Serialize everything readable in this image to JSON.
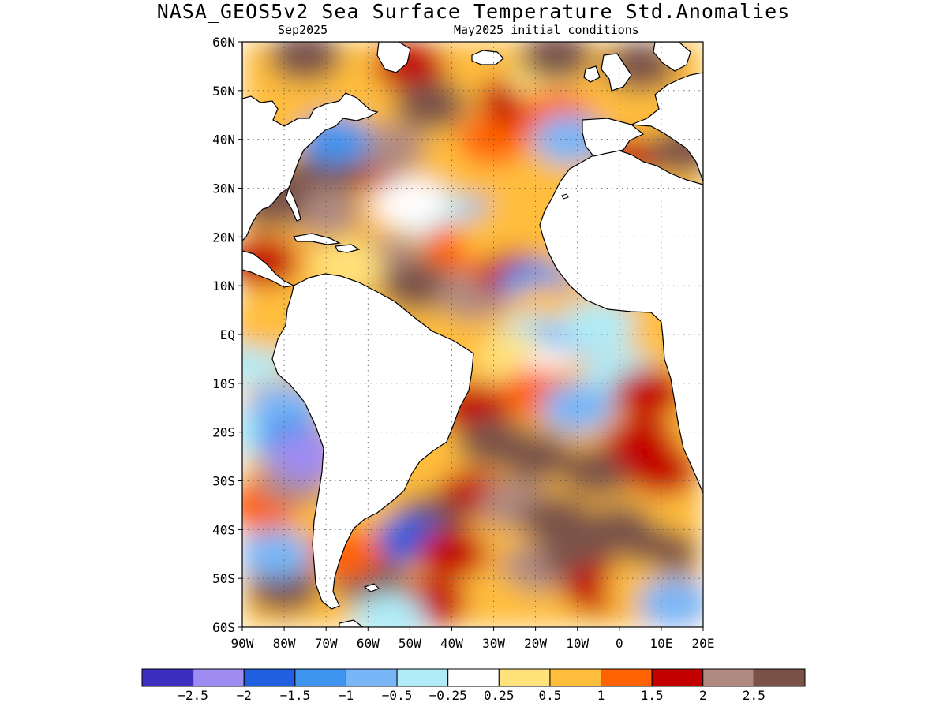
{
  "title": "NASA_GEOS5v2 Sea Surface Temperature Std.Anomalies",
  "subtitle_left": "Sep2025",
  "subtitle_right": "May2025 initial conditions",
  "map": {
    "lon_range": [
      -90,
      20
    ],
    "lat_range": [
      -60,
      60
    ],
    "lat_ticks": [
      {
        "value": 60,
        "label": "60N"
      },
      {
        "value": 50,
        "label": "50N"
      },
      {
        "value": 40,
        "label": "40N"
      },
      {
        "value": 30,
        "label": "30N"
      },
      {
        "value": 20,
        "label": "20N"
      },
      {
        "value": 10,
        "label": "10N"
      },
      {
        "value": 0,
        "label": "EQ"
      },
      {
        "value": -10,
        "label": "10S"
      },
      {
        "value": -20,
        "label": "20S"
      },
      {
        "value": -30,
        "label": "30S"
      },
      {
        "value": -40,
        "label": "40S"
      },
      {
        "value": -50,
        "label": "50S"
      },
      {
        "value": -60,
        "label": "60S"
      }
    ],
    "lon_ticks": [
      {
        "value": -90,
        "label": "90W"
      },
      {
        "value": -80,
        "label": "80W"
      },
      {
        "value": -70,
        "label": "70W"
      },
      {
        "value": -60,
        "label": "60W"
      },
      {
        "value": -50,
        "label": "50W"
      },
      {
        "value": -40,
        "label": "40W"
      },
      {
        "value": -30,
        "label": "30W"
      },
      {
        "value": -20,
        "label": "20W"
      },
      {
        "value": -10,
        "label": "10W"
      },
      {
        "value": 0,
        "label": "0"
      },
      {
        "value": 10,
        "label": "10E"
      },
      {
        "value": 20,
        "label": "20E"
      }
    ],
    "gridlines": "dotted"
  },
  "colorbar": {
    "colors": [
      "#3c2fbf",
      "#9e8cf2",
      "#1f5fe0",
      "#3f94f0",
      "#78b6f7",
      "#b0ecf7",
      "#ffffff",
      "#ffe27a",
      "#ffbd3c",
      "#ff6200",
      "#c30000",
      "#b08a80",
      "#7a5248"
    ],
    "labels": [
      "-2.5",
      "-2",
      "-1.5",
      "-1",
      "-0.5",
      "-0.25",
      "0.25",
      "0.5",
      "1",
      "1.5",
      "2",
      "2.5"
    ]
  },
  "anomaly_features": [
    {
      "lon": -40,
      "lat": 27,
      "value": -1.0
    },
    {
      "lon": -45,
      "lat": 25,
      "value": -0.5
    },
    {
      "lon": -50,
      "lat": 27,
      "value": -0.25
    },
    {
      "lon": -35,
      "lat": 33,
      "value": 0.5
    },
    {
      "lon": -60,
      "lat": 35,
      "value": 1.5
    },
    {
      "lon": -55,
      "lat": 38,
      "value": 2.0
    },
    {
      "lon": -70,
      "lat": 33,
      "value": 2.5
    },
    {
      "lon": -80,
      "lat": 30,
      "value": 2.5
    },
    {
      "lon": -30,
      "lat": 40,
      "value": 1.0
    },
    {
      "lon": -25,
      "lat": 48,
      "value": 1.5
    },
    {
      "lon": -18,
      "lat": 53,
      "value": 0.25
    },
    {
      "lon": -15,
      "lat": 45,
      "value": 1.0
    },
    {
      "lon": -50,
      "lat": 55,
      "value": 1.5
    },
    {
      "lon": -75,
      "lat": 57,
      "value": 2.5
    },
    {
      "lon": -15,
      "lat": 57,
      "value": 2.5
    },
    {
      "lon": -45,
      "lat": 47,
      "value": 2.5
    },
    {
      "lon": -68,
      "lat": 40,
      "value": -1.5
    },
    {
      "lon": -12,
      "lat": 40,
      "value": -1.0
    },
    {
      "lon": -38,
      "lat": 18,
      "value": 1.0
    },
    {
      "lon": -30,
      "lat": 20,
      "value": 0.5
    },
    {
      "lon": -55,
      "lat": 15,
      "value": 2.0
    },
    {
      "lon": -48,
      "lat": 10,
      "value": 2.5
    },
    {
      "lon": -35,
      "lat": 8,
      "value": 2.0
    },
    {
      "lon": -25,
      "lat": 12,
      "value": 1.5
    },
    {
      "lon": -20,
      "lat": 10,
      "value": -1.5
    },
    {
      "lon": -18,
      "lat": 5,
      "value": 0.5
    },
    {
      "lon": -20,
      "lat": -1,
      "value": -0.5
    },
    {
      "lon": -15,
      "lat": -3,
      "value": -1.0
    },
    {
      "lon": -5,
      "lat": 2,
      "value": -0.5
    },
    {
      "lon": -25,
      "lat": -5,
      "value": 0.25
    },
    {
      "lon": -15,
      "lat": -8,
      "value": -0.25
    },
    {
      "lon": -8,
      "lat": -10,
      "value": 0.5
    },
    {
      "lon": -20,
      "lat": -12,
      "value": 1.0
    },
    {
      "lon": 0,
      "lat": -8,
      "value": -0.5
    },
    {
      "lon": 7,
      "lat": -12,
      "value": 1.5
    },
    {
      "lon": -35,
      "lat": -15,
      "value": 1.5
    },
    {
      "lon": -10,
      "lat": -15,
      "value": -1.0
    },
    {
      "lon": -30,
      "lat": -22,
      "value": 2.5
    },
    {
      "lon": -20,
      "lat": -25,
      "value": 2.5
    },
    {
      "lon": -5,
      "lat": -28,
      "value": 2.5
    },
    {
      "lon": 5,
      "lat": -22,
      "value": 1.5
    },
    {
      "lon": 10,
      "lat": -28,
      "value": 1.5
    },
    {
      "lon": -35,
      "lat": -33,
      "value": 1.5
    },
    {
      "lon": -25,
      "lat": -35,
      "value": 2.0
    },
    {
      "lon": -15,
      "lat": -38,
      "value": 2.5
    },
    {
      "lon": 0,
      "lat": -40,
      "value": 2.5
    },
    {
      "lon": 10,
      "lat": -45,
      "value": 2.5
    },
    {
      "lon": -45,
      "lat": -38,
      "value": 2.5
    },
    {
      "lon": -50,
      "lat": -42,
      "value": -2.0
    },
    {
      "lon": -40,
      "lat": -45,
      "value": 1.5
    },
    {
      "lon": -20,
      "lat": -48,
      "value": 2.0
    },
    {
      "lon": -10,
      "lat": -45,
      "value": 2.5
    },
    {
      "lon": -5,
      "lat": -52,
      "value": 1.5
    },
    {
      "lon": 5,
      "lat": -52,
      "value": 0.5
    },
    {
      "lon": 13,
      "lat": -55,
      "value": -1.0
    },
    {
      "lon": -30,
      "lat": -55,
      "value": 0.5
    },
    {
      "lon": -45,
      "lat": -55,
      "value": 1.5
    },
    {
      "lon": -60,
      "lat": -50,
      "value": 2.5
    },
    {
      "lon": -65,
      "lat": -45,
      "value": 1.0
    },
    {
      "lon": -55,
      "lat": -58,
      "value": -0.5
    },
    {
      "lon": -80,
      "lat": -52,
      "value": 2.5
    },
    {
      "lon": -85,
      "lat": -35,
      "value": 1.0
    },
    {
      "lon": -78,
      "lat": -30,
      "value": 2.0
    },
    {
      "lon": -85,
      "lat": -20,
      "value": -0.5
    },
    {
      "lon": -80,
      "lat": -15,
      "value": -1.0
    },
    {
      "lon": -78,
      "lat": -22,
      "value": -1.5
    },
    {
      "lon": -75,
      "lat": -25,
      "value": -2.5
    },
    {
      "lon": -88,
      "lat": -5,
      "value": -0.5
    },
    {
      "lon": -85,
      "lat": 2,
      "value": 0.5
    },
    {
      "lon": -82,
      "lat": -45,
      "value": -1.0
    },
    {
      "lon": -70,
      "lat": 25,
      "value": 2.0
    },
    {
      "lon": -83,
      "lat": 27,
      "value": 2.5
    },
    {
      "lon": -75,
      "lat": 15,
      "value": 0.5
    },
    {
      "lon": -85,
      "lat": 15,
      "value": 1.5
    },
    {
      "lon": -65,
      "lat": 14,
      "value": 0.25
    },
    {
      "lon": 5,
      "lat": 38,
      "value": 1.5
    },
    {
      "lon": 15,
      "lat": 38,
      "value": 2.5
    },
    {
      "lon": 5,
      "lat": 55,
      "value": 2.5
    },
    {
      "lon": 5,
      "lat": 45,
      "value": 0.5
    }
  ]
}
